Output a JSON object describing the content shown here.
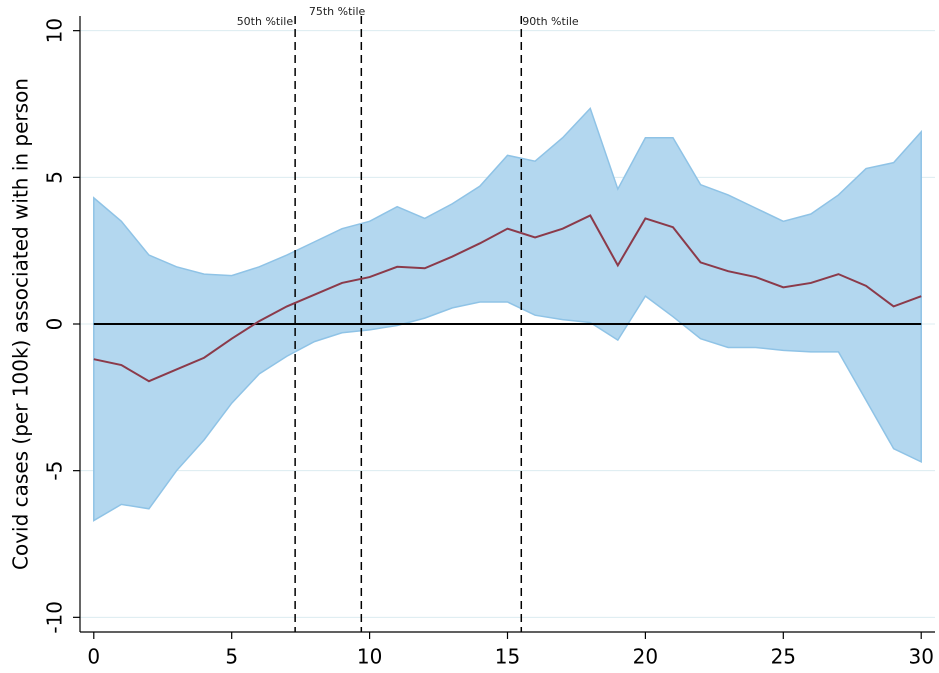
{
  "chart_data": {
    "type": "line_band",
    "y_label": "Covid cases (per 100k) associated with in person",
    "x": [
      0,
      1,
      2,
      3,
      4,
      5,
      6,
      7,
      8,
      9,
      10,
      11,
      12,
      13,
      14,
      15,
      16,
      17,
      18,
      19,
      20,
      21,
      22,
      23,
      24,
      25,
      26,
      27,
      28,
      29,
      30
    ],
    "values": [
      -1.2,
      -1.4,
      -1.95,
      -1.55,
      -1.15,
      -0.5,
      0.1,
      0.6,
      1.0,
      1.4,
      1.6,
      1.95,
      1.9,
      2.3,
      2.75,
      3.25,
      2.95,
      3.25,
      3.7,
      2.0,
      3.6,
      3.3,
      2.1,
      1.8,
      1.6,
      1.25,
      1.4,
      1.7,
      1.3,
      0.6,
      0.95
    ],
    "upper": [
      4.3,
      3.5,
      2.35,
      1.95,
      1.7,
      1.65,
      1.95,
      2.35,
      2.8,
      3.25,
      3.5,
      4.0,
      3.6,
      4.1,
      4.7,
      5.75,
      5.55,
      6.35,
      7.35,
      4.6,
      6.35,
      6.35,
      4.75,
      4.4,
      3.95,
      3.5,
      3.75,
      4.4,
      5.3,
      5.5,
      6.55
    ],
    "lower": [
      -6.7,
      -6.15,
      -6.3,
      -5.0,
      -3.95,
      -2.7,
      -1.7,
      -1.1,
      -0.6,
      -0.3,
      -0.2,
      -0.05,
      0.2,
      0.55,
      0.75,
      0.75,
      0.3,
      0.15,
      0.05,
      -0.55,
      0.95,
      0.25,
      -0.5,
      -0.8,
      -0.8,
      -0.9,
      -0.95,
      -0.95,
      -2.6,
      -4.25,
      -4.7
    ],
    "line_color": "#8b3a4a",
    "band_color": "#b3d7ef",
    "band_edge_color": "#8fc3e6",
    "zero_line": 0,
    "reference_lines": [
      {
        "value": 7.3,
        "label": "50th %tile"
      },
      {
        "value": 9.7,
        "label": "75th %tile"
      },
      {
        "value": 15.5,
        "label": "90th %tile"
      }
    ],
    "xlim": [
      -0.5,
      30.5
    ],
    "ylim": [
      -10.5,
      10.5
    ],
    "xticks": [
      0,
      5,
      10,
      15,
      20,
      25,
      30
    ],
    "yticks": [
      -10,
      -5,
      0,
      5,
      10
    ],
    "grid": true
  }
}
